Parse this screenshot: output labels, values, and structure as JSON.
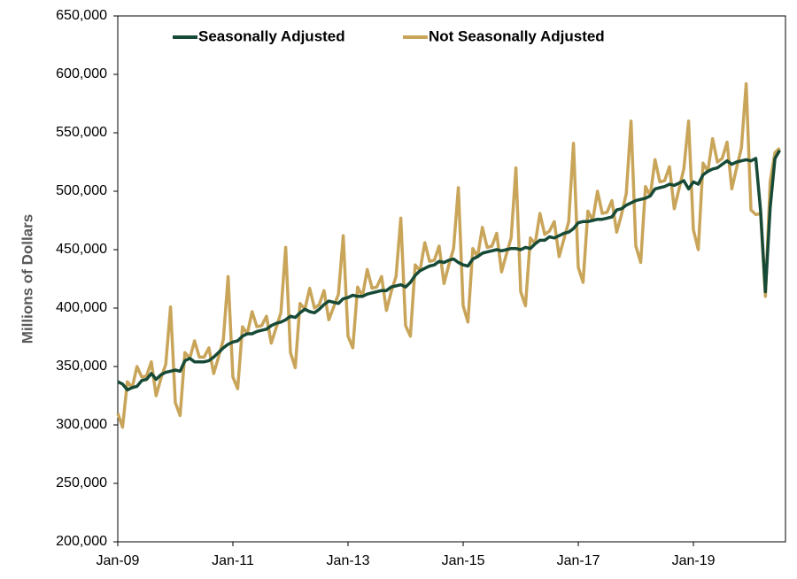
{
  "chart_data": {
    "type": "line",
    "y_label": "Millions of Dollars",
    "categories": [
      "Jan-09",
      null,
      null,
      null,
      null,
      null,
      null,
      null,
      null,
      null,
      null,
      null,
      null,
      null,
      null,
      null,
      null,
      null,
      null,
      null,
      null,
      null,
      null,
      null,
      "Jan-11",
      null,
      null,
      null,
      null,
      null,
      null,
      null,
      null,
      null,
      null,
      null,
      null,
      null,
      null,
      null,
      null,
      null,
      null,
      null,
      null,
      null,
      null,
      null,
      "Jan-13",
      null,
      null,
      null,
      null,
      null,
      null,
      null,
      null,
      null,
      null,
      null,
      null,
      null,
      null,
      null,
      null,
      null,
      null,
      null,
      null,
      null,
      null,
      null,
      "Jan-15",
      null,
      null,
      null,
      null,
      null,
      null,
      null,
      null,
      null,
      null,
      null,
      null,
      null,
      null,
      null,
      null,
      null,
      null,
      null,
      null,
      null,
      null,
      null,
      "Jan-17",
      null,
      null,
      null,
      null,
      null,
      null,
      null,
      null,
      null,
      null,
      null,
      null,
      null,
      null,
      null,
      null,
      null,
      null,
      null,
      null,
      null,
      null,
      null,
      "Jan-19",
      null,
      null,
      null,
      null,
      null,
      null,
      null,
      null,
      null,
      null,
      null,
      null,
      null,
      null,
      null,
      null,
      null,
      null
    ],
    "series": [
      {
        "name": "Seasonally Adjusted",
        "color": "#174a36",
        "values": [
          337000,
          335000,
          330000,
          332000,
          333000,
          338000,
          339000,
          344000,
          339000,
          343000,
          345000,
          346000,
          347000,
          346000,
          355000,
          357000,
          354000,
          354000,
          354000,
          355000,
          358000,
          362000,
          366000,
          369000,
          371000,
          372000,
          376000,
          378000,
          378000,
          380000,
          381000,
          382000,
          385000,
          387000,
          388000,
          390000,
          393000,
          392000,
          396000,
          399000,
          397000,
          396000,
          399000,
          403000,
          406000,
          405000,
          404000,
          408000,
          409000,
          411000,
          410000,
          410000,
          412000,
          413000,
          414000,
          415000,
          415000,
          418000,
          419000,
          420000,
          418000,
          422000,
          428000,
          432000,
          434000,
          436000,
          437000,
          440000,
          439000,
          441000,
          442000,
          439000,
          437000,
          436000,
          442000,
          444000,
          447000,
          448000,
          449000,
          450000,
          449000,
          450000,
          451000,
          451000,
          450000,
          452000,
          451000,
          455000,
          458000,
          458000,
          461000,
          460000,
          462000,
          464000,
          465000,
          468000,
          473000,
          474000,
          474000,
          475000,
          476000,
          476000,
          477000,
          478000,
          484000,
          485000,
          488000,
          490000,
          492000,
          493000,
          494000,
          496000,
          502000,
          503000,
          504000,
          506000,
          505000,
          507000,
          509000,
          502000,
          508000,
          506000,
          514000,
          517000,
          519000,
          520000,
          523000,
          526000,
          523000,
          525000,
          526000,
          527000,
          526000,
          528000,
          483000,
          414000,
          486000,
          528000,
          535000
        ]
      },
      {
        "name": "Not Seasonally Adjusted",
        "color": "#c9a55a",
        "values": [
          310000,
          298000,
          337000,
          332000,
          350000,
          341000,
          342000,
          354000,
          325000,
          340000,
          352000,
          401000,
          319000,
          308000,
          362000,
          357000,
          372000,
          358000,
          358000,
          366000,
          344000,
          358000,
          373000,
          427000,
          341000,
          331000,
          384000,
          378000,
          397000,
          384000,
          385000,
          393000,
          370000,
          383000,
          396000,
          452000,
          362000,
          349000,
          404000,
          399000,
          417000,
          400000,
          403000,
          415000,
          390000,
          401000,
          412000,
          462000,
          376000,
          366000,
          418000,
          410000,
          433000,
          417000,
          418000,
          427000,
          398000,
          414000,
          427000,
          477000,
          385000,
          376000,
          437000,
          432000,
          456000,
          440000,
          441000,
          453000,
          421000,
          437000,
          451000,
          503000,
          402000,
          388000,
          451000,
          444000,
          469000,
          452000,
          453000,
          464000,
          431000,
          446000,
          460000,
          520000,
          414000,
          402000,
          460000,
          455000,
          481000,
          463000,
          466000,
          474000,
          444000,
          459000,
          474000,
          541000,
          435000,
          422000,
          483000,
          475000,
          500000,
          481000,
          482000,
          492000,
          465000,
          480000,
          498000,
          560000,
          453000,
          439000,
          504000,
          496000,
          527000,
          508000,
          509000,
          521000,
          485000,
          502000,
          519000,
          560000,
          467000,
          450000,
          524000,
          517000,
          545000,
          525000,
          528000,
          542000,
          502000,
          520000,
          537000,
          592000,
          484000,
          480000,
          481000,
          410000,
          508000,
          533000,
          537000
        ]
      }
    ],
    "ylim": [
      200000,
      650000
    ],
    "yticks": [
      {
        "value": 200000,
        "label": "200,000"
      },
      {
        "value": 250000,
        "label": "250,000"
      },
      {
        "value": 300000,
        "label": "300,000"
      },
      {
        "value": 350000,
        "label": "350,000"
      },
      {
        "value": 400000,
        "label": "400,000"
      },
      {
        "value": 450000,
        "label": "450,000"
      },
      {
        "value": 500000,
        "label": "500,000"
      },
      {
        "value": 550000,
        "label": "550,000"
      },
      {
        "value": 600000,
        "label": "600,000"
      },
      {
        "value": 650000,
        "label": "650,000"
      }
    ],
    "legend": "top"
  }
}
